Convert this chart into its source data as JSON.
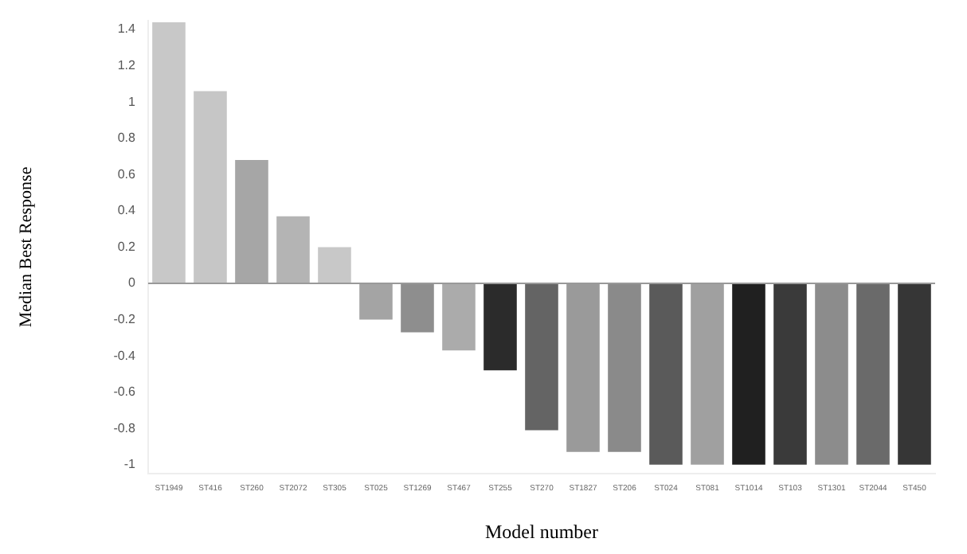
{
  "chart_data": {
    "type": "bar",
    "xlabel": "Model number",
    "ylabel": "Median Best Response",
    "categories": [
      "ST1949",
      "ST416",
      "ST260",
      "ST2072",
      "ST305",
      "ST025",
      "ST1269",
      "ST467",
      "ST255",
      "ST270",
      "ST1827",
      "ST206",
      "ST024",
      "ST081",
      "ST1014",
      "ST103",
      "ST1301",
      "ST2044",
      "ST450"
    ],
    "values": [
      1.44,
      1.06,
      0.68,
      0.37,
      0.2,
      -0.2,
      -0.27,
      -0.37,
      -0.48,
      -0.81,
      -0.93,
      -0.93,
      -1,
      -1,
      -1,
      -1,
      -1,
      -1,
      -1
    ],
    "colors": [
      "#c8c8c8",
      "#c6c6c6",
      "#a6a6a6",
      "#b4b4b4",
      "#c8c8c8",
      "#a4a4a4",
      "#8e8e8e",
      "#ababab",
      "#2b2b2b",
      "#646464",
      "#9a9a9a",
      "#8a8a8a",
      "#5a5a5a",
      "#a0a0a0",
      "#202020",
      "#3a3a3a",
      "#8c8c8c",
      "#6a6a6a",
      "#363636"
    ],
    "ylim": [
      -1.05,
      1.45
    ],
    "yticks": [
      -1,
      -0.8,
      -0.6,
      -0.4,
      -0.2,
      0,
      0.2,
      0.4,
      0.6,
      0.8,
      1,
      1.2,
      1.4
    ],
    "ref_lines": [
      {
        "axis": "y",
        "value": 0,
        "color": "#999999"
      }
    ],
    "grid": false,
    "legend": false
  }
}
